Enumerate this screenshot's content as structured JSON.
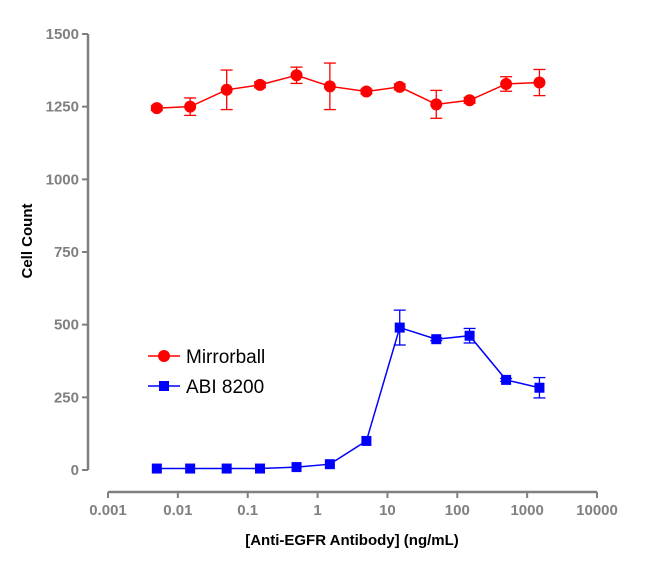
{
  "chart_data": {
    "type": "line",
    "title": "",
    "xlabel": "[Anti-EGFR Antibody] (ng/mL)",
    "ylabel": "Cell Count",
    "xscale": "log",
    "xlim": [
      0.001,
      10000
    ],
    "ylim": [
      0,
      1500
    ],
    "x_ticks": [
      0.001,
      0.01,
      0.1,
      1,
      10,
      100,
      1000,
      10000
    ],
    "x_tick_labels": [
      "0.001",
      "0.01",
      "0.1",
      "1",
      "10",
      "100",
      "1000",
      "10000"
    ],
    "y_ticks": [
      0,
      250,
      500,
      750,
      1000,
      1250,
      1500
    ],
    "y_tick_labels": [
      "0",
      "250",
      "500",
      "750",
      "1000",
      "1250",
      "1500"
    ],
    "grid": false,
    "legend_position": "center-left",
    "x": [
      0.005,
      0.015,
      0.05,
      0.15,
      0.5,
      1.5,
      5,
      15,
      50,
      150,
      500,
      1500
    ],
    "series": [
      {
        "name": "Mirrorball",
        "color": "#ff0000",
        "marker": "circle",
        "values": [
          1245,
          1250,
          1308,
          1325,
          1358,
          1320,
          1302,
          1318,
          1258,
          1272,
          1328,
          1333
        ],
        "errors": [
          8,
          30,
          68,
          10,
          28,
          80,
          8,
          10,
          48,
          10,
          25,
          45
        ]
      },
      {
        "name": "ABI 8200",
        "color": "#0000ff",
        "marker": "square",
        "values": [
          5,
          5,
          5,
          5,
          10,
          20,
          100,
          490,
          450,
          462,
          310,
          283
        ],
        "errors": [
          0,
          0,
          0,
          0,
          0,
          0,
          0,
          60,
          5,
          25,
          5,
          35
        ]
      }
    ]
  }
}
